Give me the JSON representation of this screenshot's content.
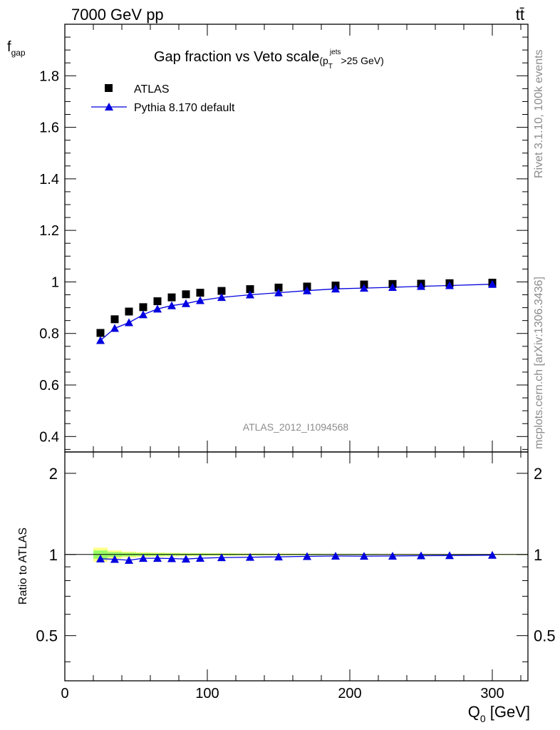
{
  "header": {
    "left": "7000 GeV pp",
    "right": "tt̄"
  },
  "side_labels": {
    "rivet": "Rivet 3.1.10,  100k events",
    "mcplots": "mcplots.cern.ch [arXiv:1306.3436]"
  },
  "chart_data": [
    {
      "type": "scatter",
      "panel": "main",
      "title": "Gap fraction vs Veto scale",
      "title_suffix": {
        "open": "(p",
        "sub": "T",
        "sup": "jets",
        "close": ">25 GeV)"
      },
      "ylabel": "f",
      "ylabel_sub": "gap",
      "xlim": [
        0,
        325
      ],
      "ylim": [
        0.34,
        2.0
      ],
      "yticks": [
        "0.4",
        "0.6",
        "0.8",
        "1",
        "1.2",
        "1.4",
        "1.6",
        "1.8"
      ],
      "yticks_values": [
        0.4,
        0.6,
        0.8,
        1.0,
        1.2,
        1.4,
        1.6,
        1.8
      ],
      "watermark": "ATLAS_2012_I1094568",
      "legend_position": "top-left",
      "series": [
        {
          "name": "ATLAS",
          "marker": "square",
          "color": "#000000",
          "x": [
            25,
            35,
            45,
            55,
            65,
            75,
            85,
            95,
            110,
            130,
            150,
            170,
            190,
            210,
            230,
            250,
            270,
            300
          ],
          "y": [
            0.802,
            0.855,
            0.885,
            0.902,
            0.925,
            0.94,
            0.952,
            0.958,
            0.965,
            0.972,
            0.978,
            0.982,
            0.986,
            0.99,
            0.992,
            0.993,
            0.995,
            0.997
          ]
        },
        {
          "name": "Pythia 8.170 default",
          "marker": "triangle",
          "color": "#0000e0",
          "x": [
            25,
            35,
            45,
            55,
            65,
            75,
            85,
            95,
            110,
            130,
            150,
            170,
            190,
            210,
            230,
            250,
            270,
            300
          ],
          "y": [
            0.773,
            0.82,
            0.842,
            0.873,
            0.895,
            0.908,
            0.916,
            0.928,
            0.94,
            0.95,
            0.958,
            0.966,
            0.973,
            0.976,
            0.979,
            0.983,
            0.986,
            0.991
          ]
        }
      ]
    },
    {
      "type": "scatter",
      "panel": "ratio",
      "ylabel": "Ratio to ATLAS",
      "xlabel": "Q",
      "xlabel_sub": "0",
      "xlabel_unit": " [GeV]",
      "xlim": [
        0,
        325
      ],
      "ylim": [
        0.34,
        2.4
      ],
      "log_y": true,
      "xticks": [
        "0",
        "100",
        "200",
        "300"
      ],
      "xticks_values": [
        0,
        100,
        200,
        300
      ],
      "yticks": [
        "0.5",
        "1",
        "2"
      ],
      "yticks_values": [
        0.5,
        1,
        2
      ],
      "band_colors": {
        "inner": "#99ff66",
        "outer": "#ffff88"
      },
      "band": {
        "x_edges": [
          20,
          30,
          40,
          50,
          60,
          70,
          80,
          90,
          100,
          120,
          140,
          160,
          180,
          200,
          220,
          240,
          260,
          280,
          325
        ],
        "inner_half_width": [
          0.035,
          0.02,
          0.015,
          0.012,
          0.01,
          0.009,
          0.008,
          0.008,
          0.007,
          0.006,
          0.005,
          0.005,
          0.004,
          0.004,
          0.003,
          0.003,
          0.003,
          0.003
        ],
        "outer_half_width": [
          0.06,
          0.035,
          0.025,
          0.02,
          0.017,
          0.015,
          0.013,
          0.012,
          0.011,
          0.009,
          0.008,
          0.007,
          0.006,
          0.006,
          0.005,
          0.005,
          0.004,
          0.004
        ]
      },
      "series": [
        {
          "name": "Pythia 8.170 default",
          "marker": "triangle",
          "color": "#0000e0",
          "x": [
            25,
            35,
            45,
            55,
            65,
            75,
            85,
            95,
            110,
            130,
            150,
            170,
            190,
            210,
            230,
            250,
            270,
            300
          ],
          "y": [
            0.964,
            0.96,
            0.952,
            0.968,
            0.968,
            0.966,
            0.962,
            0.969,
            0.974,
            0.977,
            0.98,
            0.984,
            0.987,
            0.986,
            0.987,
            0.99,
            0.991,
            0.994
          ]
        }
      ]
    }
  ]
}
